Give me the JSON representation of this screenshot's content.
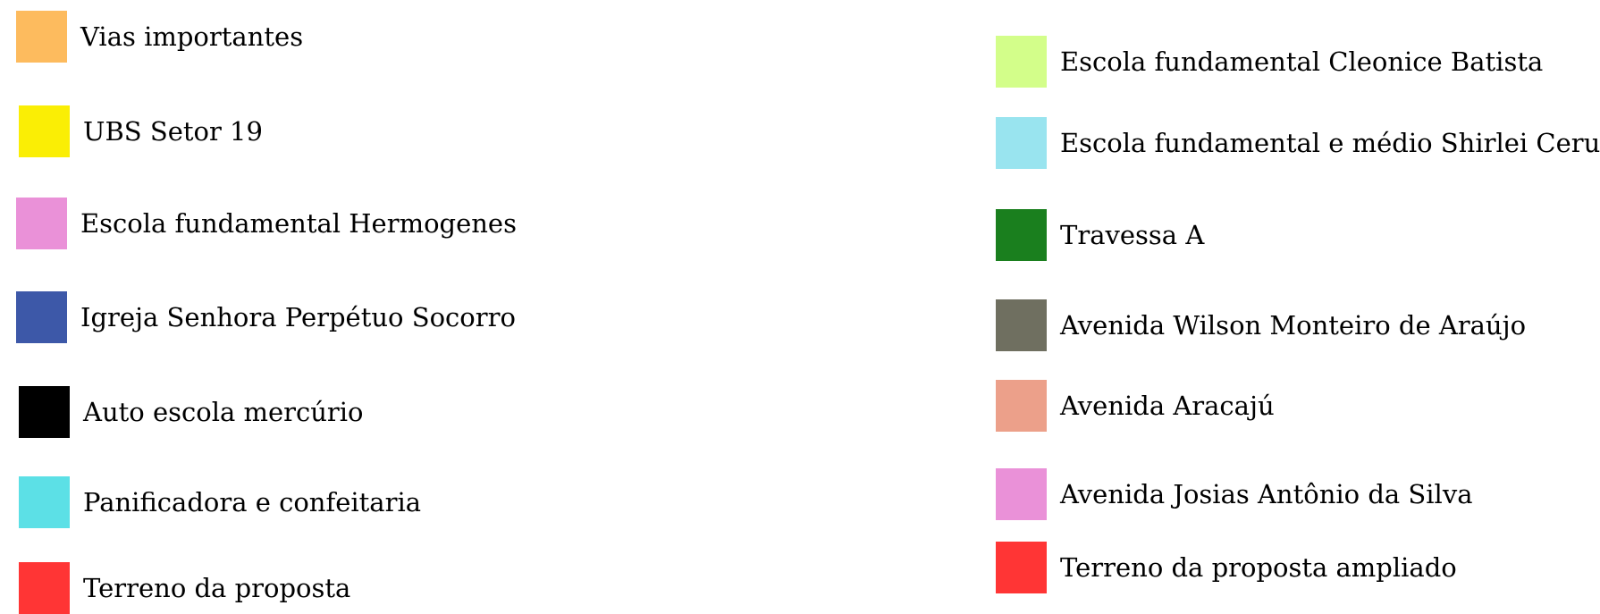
{
  "legend": {
    "left": [
      {
        "label": "Vias importantes",
        "color": "#FDBB5E"
      },
      {
        "label": "UBS Setor 19",
        "color": "#FAEE05"
      },
      {
        "label": "Escola fundamental Hermogenes",
        "color": "#EA91D8"
      },
      {
        "label": "Igreja Senhora Perpétuo Socorro",
        "color": "#3D58A8"
      },
      {
        "label": "Auto escola mercúrio",
        "color": "#000000"
      },
      {
        "label": "Panificadora e confeitaria",
        "color": "#5CE0E6"
      },
      {
        "label": "Terreno da proposta",
        "color": "#FF3535"
      }
    ],
    "right": [
      {
        "label": "Escola fundamental Cleonice Batista",
        "color": "#D3FE8A"
      },
      {
        "label": "Escola fundamental e médio Shirlei Ceruti",
        "color": "#99E4EF"
      },
      {
        "label": "Travessa A",
        "color": "#1A7F1E"
      },
      {
        "label": "Avenida Wilson Monteiro de Araújo",
        "color": "#6F6F60"
      },
      {
        "label": "Avenida Aracajú",
        "color": "#ECA08A"
      },
      {
        "label": "Avenida Josias Antônio da Silva",
        "color": "#EA91D8"
      },
      {
        "label": "Terreno da proposta ampliado",
        "color": "#FF3535"
      }
    ]
  }
}
